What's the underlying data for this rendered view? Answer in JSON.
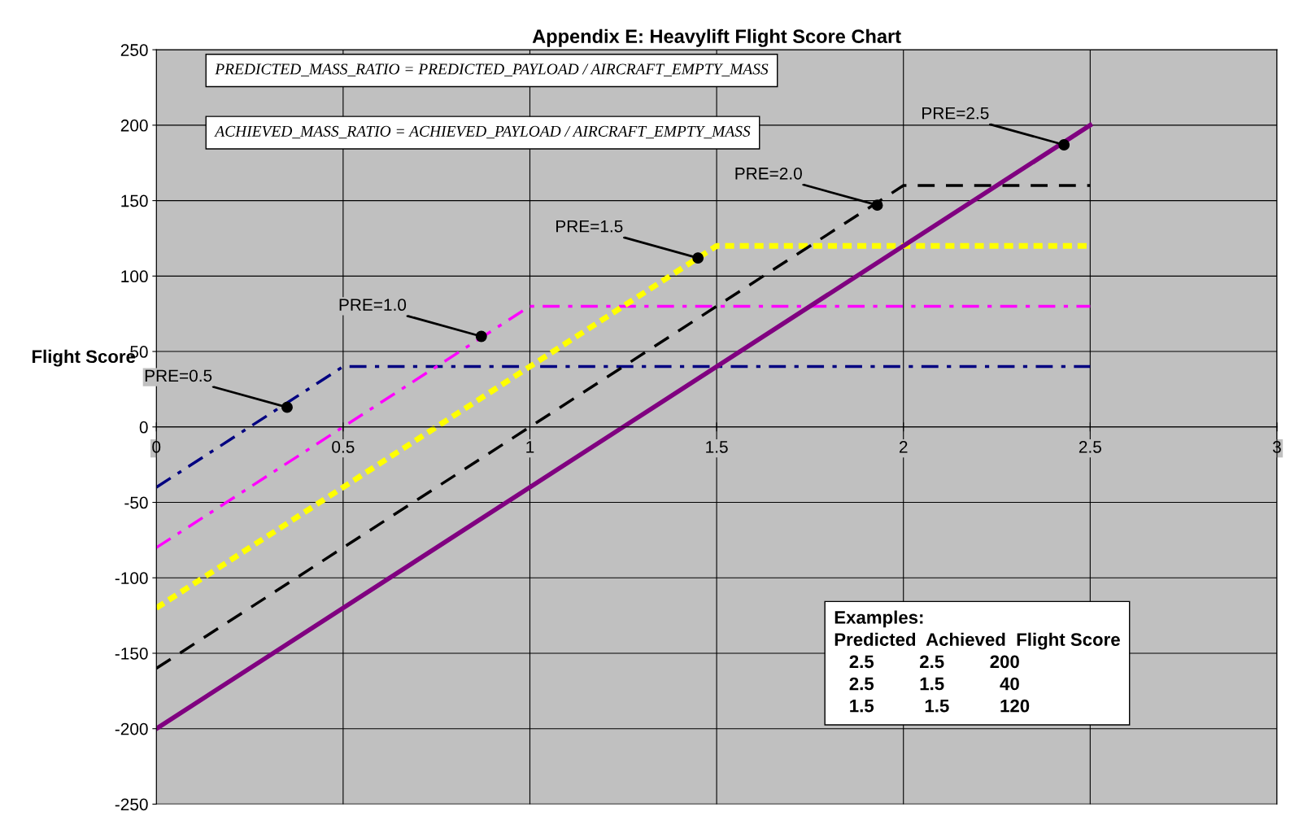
{
  "chart_data": {
    "type": "line",
    "title": "Appendix E: Heavylift Flight Score Chart",
    "ylabel": "Flight Score",
    "xlim": [
      0,
      3
    ],
    "xticks": [
      0,
      0.5,
      1,
      1.5,
      2,
      2.5,
      3
    ],
    "ylim": [
      -250,
      250
    ],
    "yticks": [
      -250,
      -200,
      -150,
      -100,
      -50,
      0,
      50,
      100,
      150,
      200,
      250
    ],
    "grid": true,
    "series": [
      {
        "color": "#000080",
        "line_style": "dashdot",
        "x": [
          0,
          0.5,
          2.5
        ],
        "values": [
          -40,
          40,
          40
        ]
      },
      {
        "color": "#ff00ff",
        "line_style": "dashdot",
        "x": [
          0,
          1,
          2.5
        ],
        "values": [
          -80,
          80,
          80
        ]
      },
      {
        "color": "#ffff00",
        "line_style": "dotted",
        "x": [
          0,
          1.5,
          2.5
        ],
        "values": [
          -120,
          120,
          120
        ]
      },
      {
        "color": "#000000",
        "line_style": "dashed",
        "x": [
          0,
          2,
          2.5
        ],
        "values": [
          -160,
          160,
          160
        ]
      },
      {
        "color": "#800080",
        "line_style": "solid",
        "x": [
          0,
          2.5
        ],
        "values": [
          -200,
          200
        ]
      }
    ],
    "annotations": [
      "PREDICTED_MASS_RATIO = PREDICTED_PAYLOAD / AIRCRAFT_EMPTY_MASS",
      "ACHIEVED_MASS_RATIO = ACHIEVED_PAYLOAD / AIRCRAFT_EMPTY_MASS",
      "Examples:\nPredicted  Achieved  Flight Score\n   2.5         2.5         200\n   2.5         1.5           40\n   1.5          1.5          120",
      {
        "text": "PRE=0.5",
        "x": 0.35,
        "y": 13
      },
      {
        "text": "PRE=1.0",
        "x": 0.87,
        "y": 60
      },
      {
        "text": "PRE=1.5",
        "x": 1.45,
        "y": 112
      },
      {
        "text": "PRE=2.0",
        "x": 1.93,
        "y": 147
      },
      {
        "text": "PRE=2.5",
        "x": 2.43,
        "y": 187
      }
    ]
  }
}
